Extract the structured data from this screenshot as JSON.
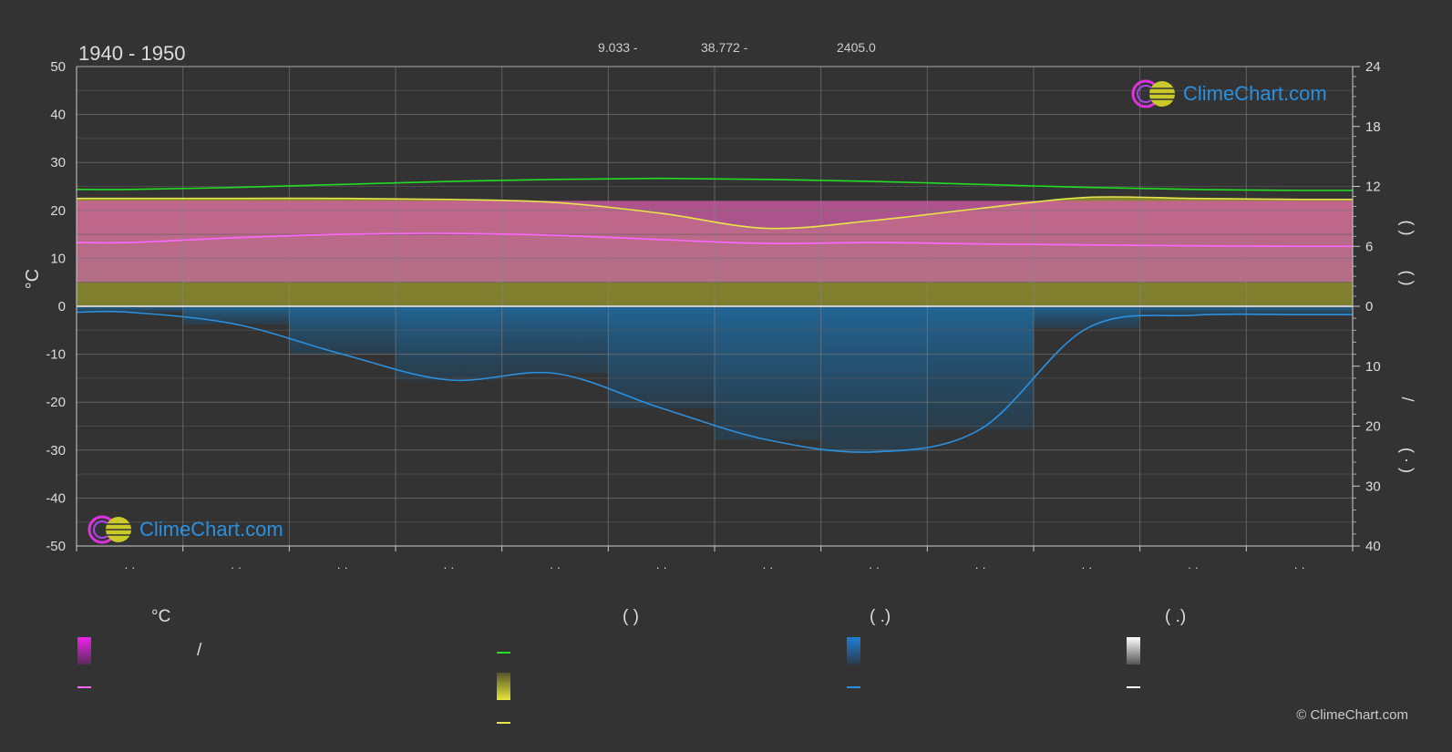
{
  "header": {
    "period": "1940 - 1950",
    "lat": "9.033 -",
    "lon": "38.772 -",
    "elevation": "2405.0"
  },
  "branding": {
    "logo_text": "ClimeChart.com",
    "copyright": "© ClimeChart.com"
  },
  "chart_data": {
    "type": "area",
    "title": "",
    "x_categories": [
      "· ·",
      "· ·",
      "· ·",
      "· ·",
      "· ·",
      "· ·",
      "· ·",
      "· ·",
      "· ·",
      "· ·",
      "· ·",
      "· ·"
    ],
    "y_left": {
      "label": "°C",
      "range": [
        -50,
        50
      ],
      "ticks": [
        50,
        40,
        30,
        20,
        10,
        0,
        -10,
        -20,
        -30,
        -40,
        -50
      ]
    },
    "y_right_upper": {
      "range": [
        0,
        24
      ],
      "ticks": [
        24,
        18,
        12,
        6,
        0
      ]
    },
    "y_right_lower": {
      "range": [
        0,
        40
      ],
      "ticks": [
        0,
        10,
        20,
        30,
        40
      ]
    },
    "right_axis_labels": [
      "(   )",
      "(   )",
      "/",
      "(   ·   )"
    ],
    "series": [
      {
        "name": "",
        "color": "#22dd22",
        "axis": "right_upper",
        "values": [
          11.7,
          11.9,
          12.2,
          12.5,
          12.7,
          12.8,
          12.7,
          12.5,
          12.2,
          11.9,
          11.7,
          11.6
        ]
      },
      {
        "name": "",
        "color": "#e6e64a",
        "axis": "right_upper",
        "values": [
          10.8,
          10.8,
          10.8,
          10.7,
          10.4,
          9.3,
          7.8,
          8.6,
          9.8,
          10.9,
          10.8,
          10.7
        ]
      },
      {
        "name": "",
        "color": "#ff66ff",
        "axis": "left",
        "values": [
          13.3,
          14.3,
          15.0,
          15.2,
          14.8,
          13.9,
          13.1,
          13.3,
          13.0,
          12.8,
          12.6,
          12.5
        ]
      },
      {
        "name": "",
        "color": "#2a90e0",
        "axis": "right_lower",
        "values": [
          1.0,
          3.0,
          8.0,
          12.3,
          11.2,
          17.0,
          22.3,
          24.3,
          20.5,
          3.7,
          1.5,
          1.4
        ]
      }
    ],
    "bands": [
      {
        "name": "",
        "color": "#c85a9a",
        "low": 5,
        "high": 22
      },
      {
        "name": "",
        "color": "#8a8a32",
        "low": 0,
        "high": 22.5
      }
    ],
    "grid": true
  },
  "legend": {
    "col1_head": "°C",
    "col1_slash": "/",
    "col2_head": "(           )",
    "col3_head": "(   .)",
    "col4_head": "(   .)",
    "colors": {
      "temp_band": "#ee22ee",
      "temp_line": "#ff66ff",
      "green_line": "#22dd22",
      "sun_band": "#d8d83a",
      "sun_line": "#e6e64a",
      "rain_band": "#1e7fd8",
      "rain_line": "#2a90e0",
      "snow_band": "#dddddd",
      "snow_line": "#ffffff"
    }
  }
}
